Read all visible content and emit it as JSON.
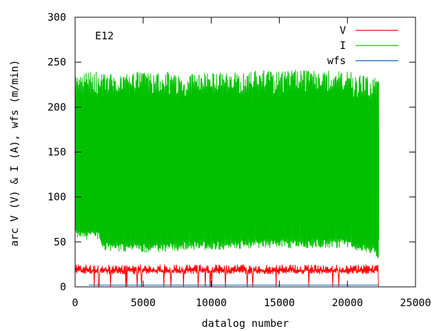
{
  "chart_data": {
    "type": "line",
    "annotation": "E12",
    "xlabel": "datalog number",
    "ylabel": "arc V (V) & I (A), wfs (m/min)",
    "xlim": [
      0,
      25000
    ],
    "ylim": [
      0,
      300
    ],
    "x_ticks": [
      0,
      5000,
      10000,
      15000,
      20000,
      25000
    ],
    "y_ticks": [
      0,
      50,
      100,
      150,
      200,
      250,
      300
    ],
    "x_tick_labels": [
      "0",
      "5000",
      "10000",
      "15000",
      "20000",
      "25000"
    ],
    "y_tick_labels": [
      "0",
      "50",
      "100",
      "150",
      "200",
      "250",
      "300"
    ],
    "grid": false,
    "legend_position": "top-right",
    "series": [
      {
        "name": "V",
        "color": "#ff0000",
        "x_range": [
          0,
          22300
        ],
        "baseline": 18,
        "peak": 25,
        "dropouts_to": 0
      },
      {
        "name": "I",
        "color": "#00c000",
        "x_range": [
          0,
          22300
        ],
        "low": [
          [
            0,
            58
          ],
          [
            1800,
            58
          ],
          [
            2000,
            45
          ],
          [
            5000,
            43
          ],
          [
            10000,
            46
          ],
          [
            15000,
            48
          ],
          [
            20000,
            48
          ],
          [
            22000,
            40
          ],
          [
            22300,
            28
          ]
        ],
        "high": [
          [
            0,
            238
          ],
          [
            2000,
            240
          ],
          [
            5000,
            240
          ],
          [
            10000,
            238
          ],
          [
            15000,
            242
          ],
          [
            20000,
            240
          ],
          [
            22300,
            232
          ]
        ],
        "end_value": 52
      },
      {
        "name": "wfs",
        "color": "#0060c0",
        "x_range": [
          1000,
          22300
        ],
        "value": 2
      }
    ]
  }
}
